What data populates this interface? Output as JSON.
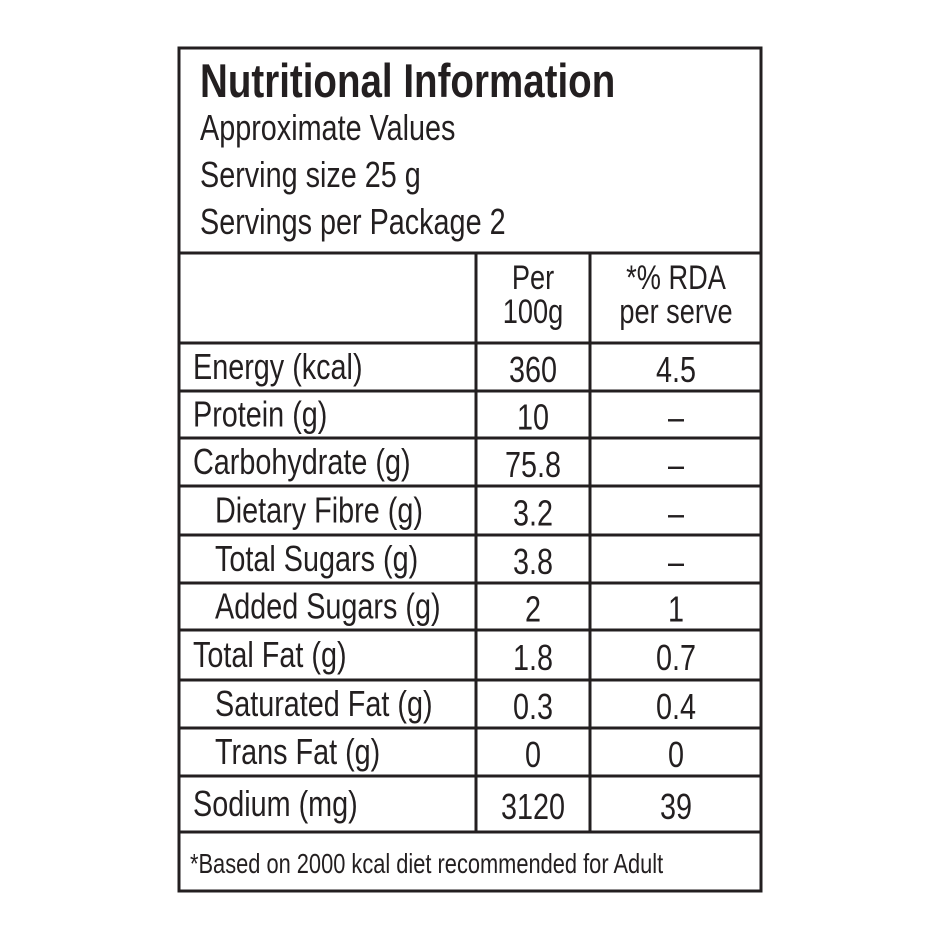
{
  "header": {
    "title": "Nutritional Information",
    "lines": [
      "Approximate Values",
      "Serving size 25 g",
      "Servings per Package 2"
    ]
  },
  "table": {
    "columns": [
      [
        "Per",
        "100g"
      ],
      [
        "*% RDA",
        "per serve"
      ]
    ],
    "rows": [
      [
        "Energy (kcal)",
        "360",
        "4.5"
      ],
      [
        "Protein (g)",
        "10",
        "–"
      ],
      [
        "Carbohydrate (g)",
        "75.8",
        "–"
      ],
      [
        "Dietary Fibre (g)",
        "3.2",
        "–"
      ],
      [
        "Total Sugars (g)",
        "3.8",
        "–"
      ],
      [
        "Added Sugars (g)",
        "2",
        "1"
      ],
      [
        "Total Fat (g)",
        "1.8",
        "0.7"
      ],
      [
        "Saturated Fat (g)",
        "0.3",
        "0.4"
      ],
      [
        "Trans Fat (g)",
        "0",
        "0"
      ],
      [
        "Sodium (mg)",
        "3120",
        "39"
      ]
    ]
  },
  "footer": "*Based on 2000 kcal diet recommended for Adult"
}
